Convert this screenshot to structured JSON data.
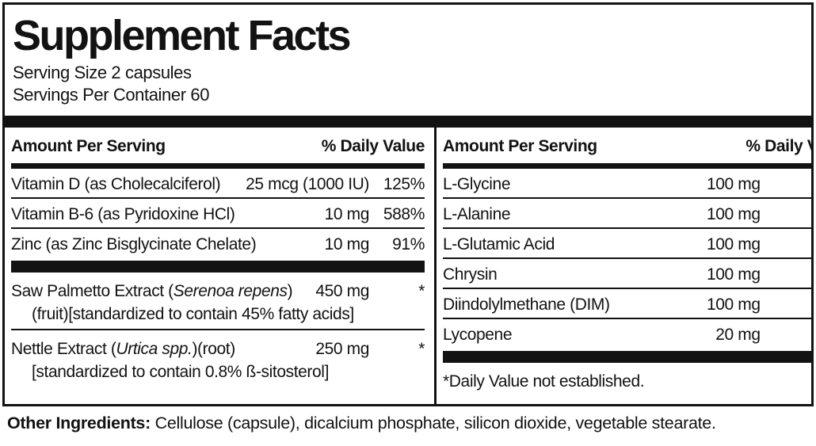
{
  "label": {
    "title": "Supplement Facts",
    "serving_size": "Serving Size 2 capsules",
    "servings_per_container": "Servings Per Container 60",
    "column_header": {
      "amount": "Amount Per Serving",
      "daily_value": "% Daily Value"
    },
    "left": {
      "rows": [
        {
          "name": "Vitamin D (as Cholecalciferol)",
          "amount": "25 mcg (1000 IU)",
          "dv": "125%"
        },
        {
          "name": "Vitamin B-6 (as Pyridoxine HCl)",
          "amount": "10 mg",
          "dv": "588%"
        },
        {
          "name": "Zinc (as Zinc Bisglycinate Chelate)",
          "amount": "10 mg",
          "dv": "91%"
        }
      ],
      "botanicals": [
        {
          "name_pre": "Saw Palmetto Extract (",
          "name_italic": "Serenoa repens",
          "name_post": ")",
          "amount": "450 mg",
          "dv": "*",
          "detail": "(fruit)[standardized to contain 45% fatty acids]"
        },
        {
          "name_pre": "Nettle Extract (",
          "name_italic": "Urtica spp.",
          "name_post": ")(root)",
          "amount": "250 mg",
          "dv": "*",
          "detail": "[standardized to contain 0.8% ß-sitosterol]"
        }
      ]
    },
    "right": {
      "rows": [
        {
          "name": "L-Glycine",
          "amount": "100 mg",
          "dv": "*"
        },
        {
          "name": "L-Alanine",
          "amount": "100 mg",
          "dv": "*"
        },
        {
          "name": "L-Glutamic Acid",
          "amount": "100 mg",
          "dv": "*"
        },
        {
          "name": "Chrysin",
          "amount": "100 mg",
          "dv": "*"
        },
        {
          "name": "Diindolylmethane (DIM)",
          "amount": "100 mg",
          "dv": "*"
        },
        {
          "name": "Lycopene",
          "amount": "20 mg",
          "dv": "*"
        }
      ],
      "footnote": "*Daily Value not established."
    },
    "other_ingredients": {
      "label": "Other Ingredients:",
      "text": " Cellulose (capsule), dicalcium phosphate, silicon dioxide, vegetable stearate."
    },
    "colors": {
      "ink": "#121212",
      "background": "#ffffff"
    }
  }
}
